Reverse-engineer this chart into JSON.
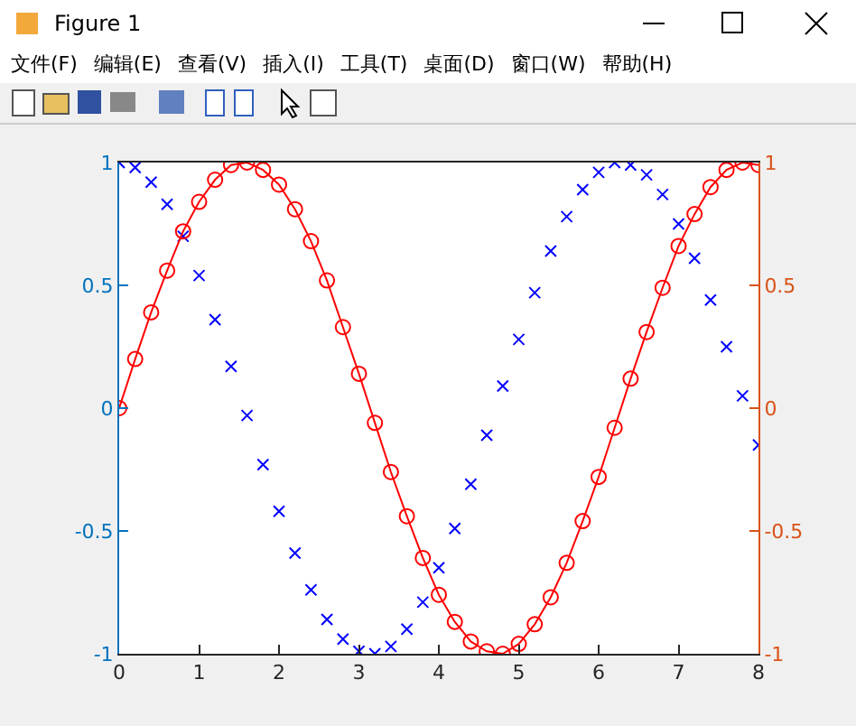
{
  "chart_data": {
    "type": "scatter",
    "annotations": [
      "Figure 1",
      "文件(F)",
      "编辑(E)",
      "查看(V)",
      "插入(I)",
      "工具(T)",
      "桌面(D)",
      "窗口(W)",
      "帮助(H)"
    ],
    "x": [
      0,
      0.2,
      0.4,
      0.6,
      0.8,
      1.0,
      1.2,
      1.4,
      1.6,
      1.8,
      2.0,
      2.2,
      2.4,
      2.6,
      2.8,
      3.0,
      3.2,
      3.4,
      3.6,
      3.8,
      4.0,
      4.2,
      4.4,
      4.6,
      4.8,
      5.0,
      5.2,
      5.4,
      5.6,
      5.8,
      6.0,
      6.2,
      6.4,
      6.6,
      6.8,
      7.0,
      7.2,
      7.4,
      7.6,
      7.8,
      8.0
    ],
    "series": [
      {
        "type": "scatter",
        "marker": "cross",
        "color": "#0000ff",
        "values": [
          1,
          0.98,
          0.92,
          0.83,
          0.7,
          0.54,
          0.36,
          0.17,
          -0.03,
          -0.23,
          -0.42,
          -0.59,
          -0.74,
          -0.86,
          -0.94,
          -0.99,
          -1.0,
          -0.97,
          -0.9,
          -0.79,
          -0.65,
          -0.49,
          -0.31,
          -0.11,
          0.09,
          0.28,
          0.47,
          0.64,
          0.78,
          0.89,
          0.96,
          1.0,
          0.99,
          0.95,
          0.87,
          0.75,
          0.61,
          0.44,
          0.25,
          0.05,
          -0.15
        ]
      },
      {
        "type": "line",
        "axis": "y2",
        "marker": "circle",
        "line_style": "solid",
        "color": "#ff0000",
        "values": [
          0,
          0.2,
          0.39,
          0.56,
          0.72,
          0.84,
          0.93,
          0.99,
          1.0,
          0.97,
          0.91,
          0.81,
          0.68,
          0.52,
          0.33,
          0.14,
          -0.06,
          -0.26,
          -0.44,
          -0.61,
          -0.76,
          -0.87,
          -0.95,
          -0.99,
          -1.0,
          -0.96,
          -0.88,
          -0.77,
          -0.63,
          -0.46,
          -0.28,
          -0.08,
          0.12,
          0.31,
          0.49,
          0.66,
          0.79,
          0.9,
          0.97,
          1.0,
          0.99
        ]
      }
    ],
    "xlim": [
      0,
      8
    ],
    "xticks": [
      0,
      1,
      2,
      3,
      4,
      5,
      6,
      7,
      8
    ],
    "ylim": [
      -1,
      1
    ],
    "yticks": [
      -1,
      -0.5,
      0,
      0.5,
      1
    ],
    "y2lim": [
      -1,
      1
    ],
    "y2ticks": [
      -1,
      -0.5,
      0,
      0.5,
      1
    ],
    "grid": false
  }
}
